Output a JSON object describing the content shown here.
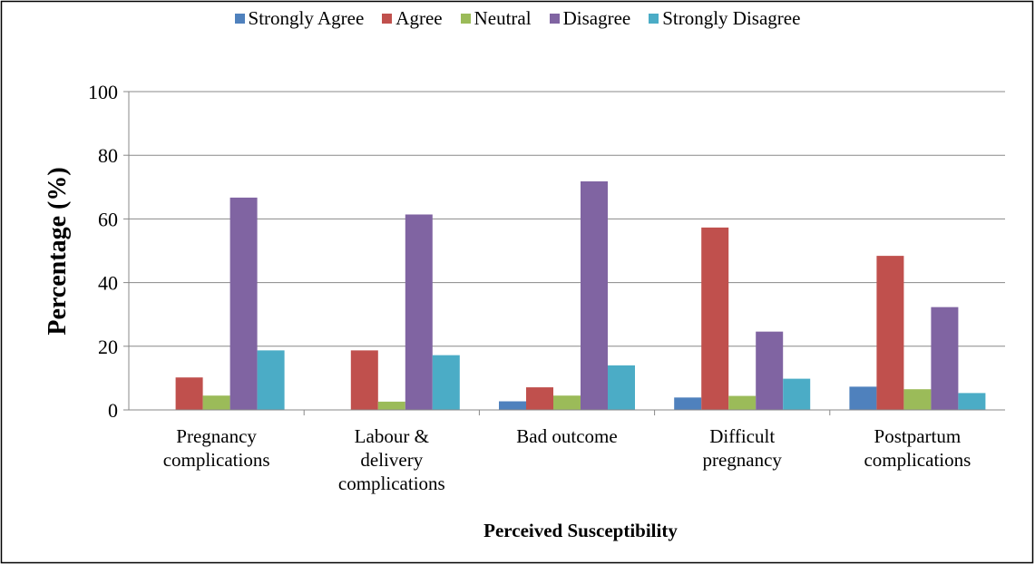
{
  "chart_data": {
    "type": "bar",
    "x_label": "Perceived Susceptibility",
    "y_label": "Percentage (%)",
    "categories": [
      "Pregnancy complications",
      "Labour & delivery complications",
      "Bad outcome",
      "Difficult pregnancy",
      "Postpartum complications"
    ],
    "series": [
      {
        "name": "Strongly Agree",
        "color": "#4f81bd",
        "values": [
          0,
          0,
          2.7,
          3.9,
          7.3
        ]
      },
      {
        "name": "Agree",
        "color": "#c0504d",
        "values": [
          10.2,
          18.7,
          7.1,
          57.3,
          48.4
        ]
      },
      {
        "name": "Neutral",
        "color": "#9bbb59",
        "values": [
          4.5,
          2.6,
          4.5,
          4.4,
          6.5
        ]
      },
      {
        "name": "Disagree",
        "color": "#8064a2",
        "values": [
          66.7,
          61.4,
          71.8,
          24.6,
          32.3
        ]
      },
      {
        "name": "Strongly Disagree",
        "color": "#4bacc6",
        "values": [
          18.7,
          17.2,
          14,
          9.8,
          5.3
        ]
      }
    ],
    "ylim": [
      0,
      100
    ],
    "yticks": [
      0,
      20,
      40,
      60,
      80,
      100
    ],
    "grid": true,
    "legend": "top"
  }
}
